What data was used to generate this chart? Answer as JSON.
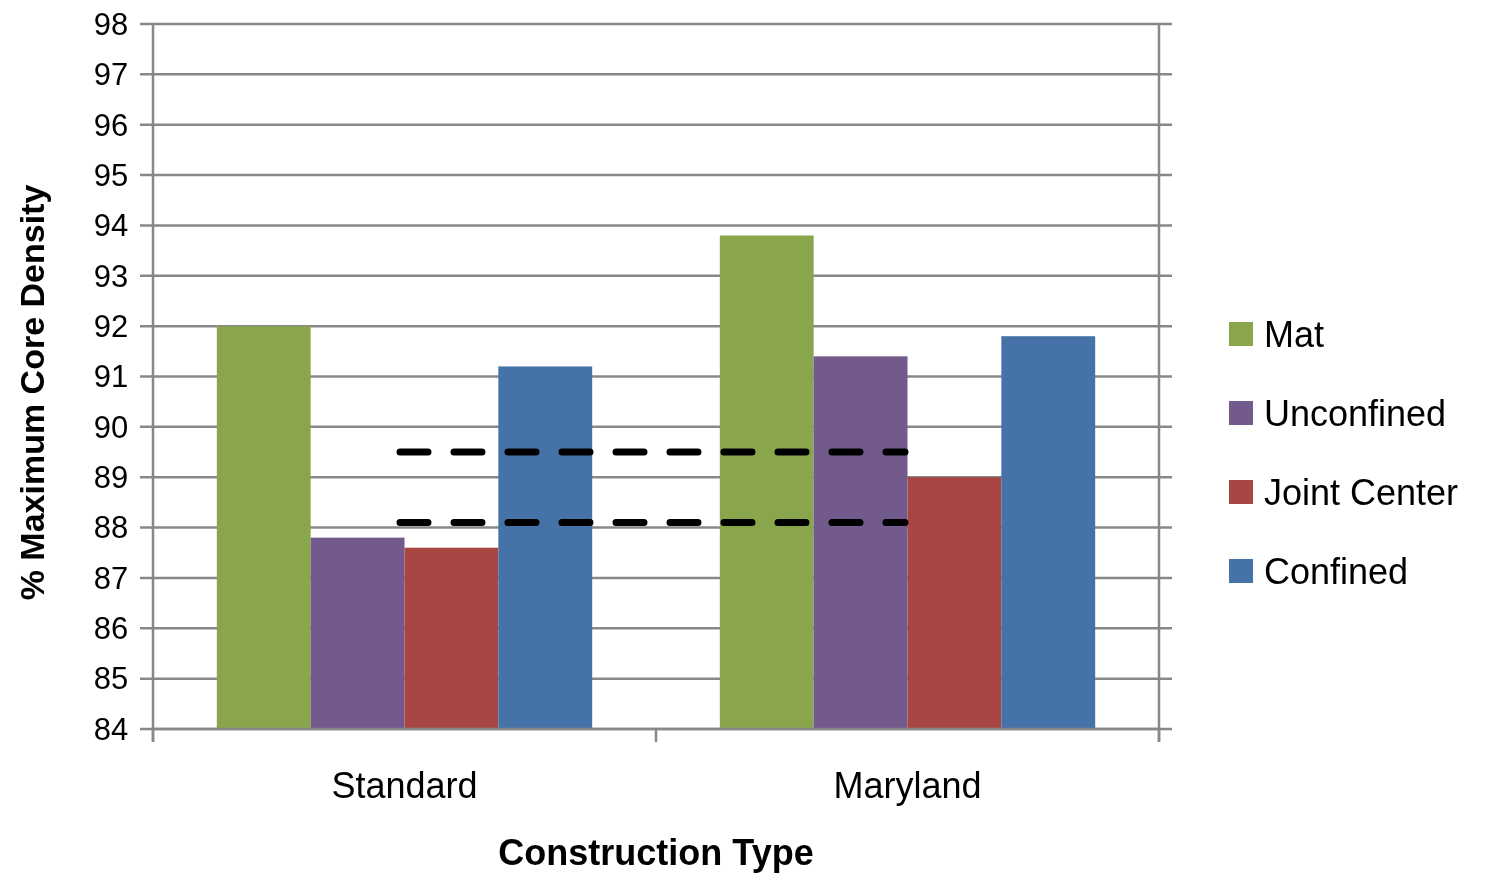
{
  "chart_data": {
    "type": "bar",
    "xlabel": "Construction Type",
    "ylabel": "% Maximum Core Density",
    "categories": [
      "Standard",
      "Maryland"
    ],
    "series": [
      {
        "name": "Mat",
        "color": "#8aa64c",
        "values": [
          92.0,
          93.8
        ]
      },
      {
        "name": "Unconfined",
        "color": "#725a8c",
        "values": [
          87.8,
          91.4
        ]
      },
      {
        "name": "Joint Center",
        "color": "#a84644",
        "values": [
          87.6,
          89.0
        ]
      },
      {
        "name": "Confined",
        "color": "#4572a7",
        "values": [
          91.2,
          91.8
        ]
      }
    ],
    "ylim": [
      84,
      98
    ],
    "yticks": [
      84,
      85,
      86,
      87,
      88,
      89,
      90,
      91,
      92,
      93,
      94,
      95,
      96,
      97,
      98
    ],
    "grid": "y",
    "legend": "right",
    "ref_lines": [
      {
        "axis": "y",
        "value": 89.5,
        "color": "#000000",
        "line_style": "dashed"
      },
      {
        "axis": "y",
        "value": 88.1,
        "color": "#000000",
        "line_style": "dashed"
      }
    ]
  }
}
